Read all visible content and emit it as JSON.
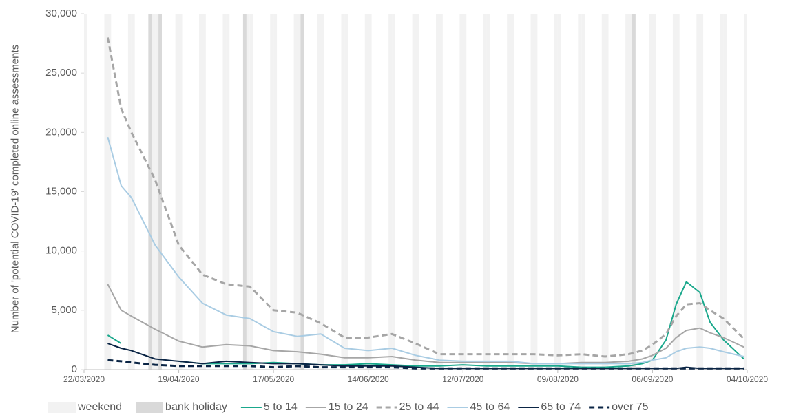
{
  "chart_data": {
    "type": "line",
    "y_label": "Number of 'potential COVID-19' completed online assessments",
    "x": [
      "29/03/2020",
      "02/04/2020",
      "05/04/2020",
      "12/04/2020",
      "19/04/2020",
      "26/04/2020",
      "03/05/2020",
      "10/05/2020",
      "17/05/2020",
      "24/05/2020",
      "31/05/2020",
      "07/06/2020",
      "14/06/2020",
      "21/06/2020",
      "28/06/2020",
      "05/07/2020",
      "12/07/2020",
      "19/07/2020",
      "26/07/2020",
      "02/08/2020",
      "09/08/2020",
      "16/08/2020",
      "23/08/2020",
      "30/08/2020",
      "03/09/2020",
      "06/09/2020",
      "10/09/2020",
      "13/09/2020",
      "16/09/2020",
      "20/09/2020",
      "23/09/2020",
      "27/09/2020",
      "03/10/2020"
    ],
    "series": [
      {
        "name": "5 to 14",
        "color": "#1aa88c",
        "dashed": false,
        "values": [
          2900,
          2200,
          null,
          null,
          700,
          500,
          500,
          500,
          600,
          500,
          400,
          400,
          500,
          400,
          300,
          300,
          400,
          300,
          300,
          300,
          300,
          200,
          200,
          300,
          500,
          800,
          2500,
          5500,
          7400,
          6500,
          4000,
          2500,
          900
        ]
      },
      {
        "name": "15 to 24",
        "color": "#a6a6a6",
        "dashed": false,
        "values": [
          7200,
          5000,
          4500,
          3400,
          2400,
          1900,
          2100,
          2000,
          1600,
          1500,
          1300,
          1000,
          1000,
          1100,
          800,
          600,
          600,
          600,
          600,
          500,
          500,
          600,
          600,
          700,
          900,
          1200,
          1800,
          2700,
          3300,
          3500,
          3100,
          2700,
          1900
        ]
      },
      {
        "name": "25 to 44",
        "color": "#a6a6a6",
        "dashed": true,
        "values": [
          28000,
          22000,
          20000,
          16000,
          10500,
          8000,
          7200,
          7000,
          5000,
          4800,
          3900,
          2700,
          2700,
          3000,
          2200,
          1300,
          1300,
          1300,
          1300,
          1300,
          1200,
          1300,
          1100,
          1300,
          1600,
          2100,
          3000,
          4500,
          5500,
          5600,
          5000,
          4300,
          2600
        ]
      },
      {
        "name": "45 to 64",
        "color": "#a9cce3",
        "dashed": false,
        "values": [
          19600,
          15500,
          14500,
          10500,
          7800,
          5600,
          4600,
          4300,
          3200,
          2800,
          3000,
          1800,
          1600,
          1800,
          1200,
          800,
          700,
          700,
          700,
          500,
          500,
          500,
          500,
          500,
          600,
          800,
          1000,
          1500,
          1800,
          1900,
          1800,
          1500,
          1100
        ]
      },
      {
        "name": "65 to 74",
        "color": "#0b2545",
        "dashed": false,
        "values": [
          2200,
          1800,
          1600,
          900,
          700,
          500,
          700,
          600,
          500,
          500,
          400,
          300,
          300,
          300,
          200,
          100,
          100,
          100,
          100,
          100,
          100,
          100,
          100,
          100,
          100,
          100,
          100,
          100,
          200,
          100,
          100,
          100,
          100
        ]
      },
      {
        "name": "over 75",
        "color": "#0b2545",
        "dashed": true,
        "values": [
          800,
          700,
          600,
          400,
          300,
          300,
          300,
          300,
          200,
          300,
          200,
          200,
          200,
          200,
          100,
          100,
          100,
          100,
          100,
          100,
          100,
          100,
          100,
          100,
          100,
          100,
          100,
          100,
          100,
          100,
          100,
          100,
          100
        ]
      }
    ],
    "bands": [
      {
        "name": "weekend",
        "color": "#f2f2f2"
      },
      {
        "name": "bank holiday",
        "color": "#d9d9d9",
        "dates": [
          "10/04/2020",
          "13/04/2020",
          "08/05/2020",
          "25/05/2020",
          "31/08/2020"
        ]
      }
    ],
    "xlim": [
      "22/03/2020",
      "04/10/2020"
    ],
    "xticks": [
      "22/03/2020",
      "19/04/2020",
      "17/05/2020",
      "14/06/2020",
      "12/07/2020",
      "09/08/2020",
      "06/09/2020",
      "04/10/2020"
    ],
    "ylim": [
      0,
      30000
    ],
    "yticks": [
      0,
      {
        "value": 5000,
        "label": "5,000"
      },
      {
        "value": 10000,
        "label": "10,000"
      },
      {
        "value": 15000,
        "label": "15,000"
      },
      {
        "value": 20000,
        "label": "20,000"
      },
      {
        "value": 25000,
        "label": "25,000"
      },
      {
        "value": 30000,
        "label": "30,000"
      }
    ],
    "grid": false
  }
}
